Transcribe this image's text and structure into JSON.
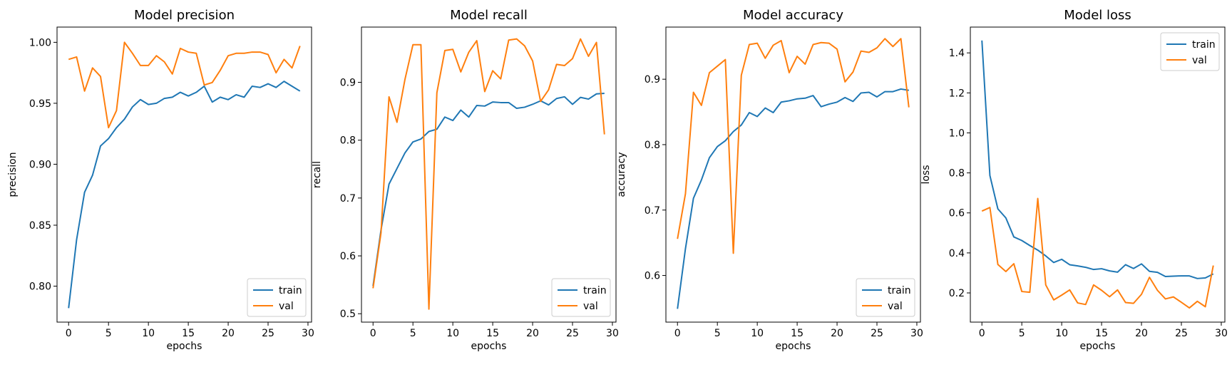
{
  "colors": {
    "train": "#1f77b4",
    "val": "#ff7f0e"
  },
  "chart_data": [
    {
      "type": "line",
      "title": "Model precision",
      "xlabel": "epochs",
      "ylabel": "precision",
      "xlim": [
        -1.45,
        30.45
      ],
      "ylim": [
        0.7705,
        1.0125
      ],
      "xticks": [
        0,
        5,
        10,
        15,
        20,
        25,
        30
      ],
      "yticks": [
        0.8,
        0.85,
        0.9,
        0.95,
        1.0
      ],
      "ytick_labels": [
        "0.80",
        "0.85",
        "0.90",
        "0.95",
        "1.00"
      ],
      "legend": "lower right",
      "x": [
        0,
        1,
        2,
        3,
        4,
        5,
        6,
        7,
        8,
        9,
        10,
        11,
        12,
        13,
        14,
        15,
        16,
        17,
        18,
        19,
        20,
        21,
        22,
        23,
        24,
        25,
        26,
        27,
        28,
        29
      ],
      "series": [
        {
          "name": "train",
          "color": "#1f77b4",
          "values": [
            0.782,
            0.838,
            0.877,
            0.891,
            0.915,
            0.921,
            0.93,
            0.937,
            0.947,
            0.953,
            0.949,
            0.95,
            0.954,
            0.955,
            0.959,
            0.956,
            0.959,
            0.964,
            0.951,
            0.955,
            0.953,
            0.957,
            0.955,
            0.964,
            0.963,
            0.966,
            0.963,
            0.968,
            0.964,
            0.96
          ]
        },
        {
          "name": "val",
          "color": "#ff7f0e",
          "values": [
            0.986,
            0.988,
            0.96,
            0.979,
            0.972,
            0.93,
            0.944,
            1.0,
            0.991,
            0.981,
            0.981,
            0.989,
            0.984,
            0.974,
            0.995,
            0.992,
            0.991,
            0.965,
            0.967,
            0.977,
            0.989,
            0.991,
            0.991,
            0.992,
            0.992,
            0.99,
            0.975,
            0.986,
            0.979,
            0.997
          ]
        }
      ]
    },
    {
      "type": "line",
      "title": "Model recall",
      "xlabel": "epochs",
      "ylabel": "recall",
      "xlim": [
        -1.45,
        30.45
      ],
      "ylim": [
        0.4855,
        0.9955
      ],
      "xticks": [
        0,
        5,
        10,
        15,
        20,
        25,
        30
      ],
      "yticks": [
        0.5,
        0.6,
        0.7,
        0.8,
        0.9
      ],
      "ytick_labels": [
        "0.5",
        "0.6",
        "0.7",
        "0.8",
        "0.9"
      ],
      "legend": "lower right",
      "x": [
        0,
        1,
        2,
        3,
        4,
        5,
        6,
        7,
        8,
        9,
        10,
        11,
        12,
        13,
        14,
        15,
        16,
        17,
        18,
        19,
        20,
        21,
        22,
        23,
        24,
        25,
        26,
        27,
        28,
        29
      ],
      "series": [
        {
          "name": "train",
          "color": "#1f77b4",
          "values": [
            0.548,
            0.645,
            0.724,
            0.751,
            0.778,
            0.797,
            0.802,
            0.815,
            0.819,
            0.84,
            0.834,
            0.852,
            0.84,
            0.86,
            0.859,
            0.866,
            0.865,
            0.865,
            0.855,
            0.857,
            0.862,
            0.868,
            0.861,
            0.872,
            0.875,
            0.862,
            0.874,
            0.871,
            0.88,
            0.881
          ]
        },
        {
          "name": "val",
          "color": "#ff7f0e",
          "values": [
            0.544,
            0.64,
            0.875,
            0.831,
            0.905,
            0.965,
            0.965,
            0.508,
            0.882,
            0.955,
            0.957,
            0.918,
            0.952,
            0.972,
            0.884,
            0.92,
            0.906,
            0.973,
            0.975,
            0.963,
            0.937,
            0.867,
            0.887,
            0.931,
            0.929,
            0.941,
            0.975,
            0.945,
            0.969,
            0.81
          ]
        }
      ]
    },
    {
      "type": "line",
      "title": "Model accuracy",
      "xlabel": "epochs",
      "ylabel": "accuracy",
      "xlim": [
        -1.45,
        30.45
      ],
      "ylim": [
        0.5287,
        0.9797
      ],
      "xticks": [
        0,
        5,
        10,
        15,
        20,
        25,
        30
      ],
      "yticks": [
        0.6,
        0.7,
        0.8,
        0.9
      ],
      "ytick_labels": [
        "0.6",
        "0.7",
        "0.8",
        "0.9"
      ],
      "legend": "lower right",
      "x": [
        0,
        1,
        2,
        3,
        4,
        5,
        6,
        7,
        8,
        9,
        10,
        11,
        12,
        13,
        14,
        15,
        16,
        17,
        18,
        19,
        20,
        21,
        22,
        23,
        24,
        25,
        26,
        27,
        28,
        29
      ],
      "series": [
        {
          "name": "train",
          "color": "#1f77b4",
          "values": [
            0.549,
            0.641,
            0.718,
            0.746,
            0.78,
            0.797,
            0.806,
            0.82,
            0.83,
            0.849,
            0.843,
            0.856,
            0.849,
            0.865,
            0.867,
            0.87,
            0.871,
            0.875,
            0.858,
            0.862,
            0.865,
            0.872,
            0.866,
            0.879,
            0.88,
            0.873,
            0.881,
            0.881,
            0.885,
            0.883
          ]
        },
        {
          "name": "val",
          "color": "#ff7f0e",
          "values": [
            0.656,
            0.725,
            0.88,
            0.86,
            0.91,
            0.92,
            0.93,
            0.634,
            0.906,
            0.953,
            0.955,
            0.932,
            0.952,
            0.959,
            0.91,
            0.935,
            0.923,
            0.953,
            0.956,
            0.955,
            0.946,
            0.896,
            0.911,
            0.943,
            0.941,
            0.948,
            0.962,
            0.95,
            0.962,
            0.857
          ]
        }
      ]
    },
    {
      "type": "line",
      "title": "Model loss",
      "xlabel": "epochs",
      "ylabel": "loss",
      "xlim": [
        -1.45,
        30.45
      ],
      "ylim": [
        0.054,
        1.529
      ],
      "xticks": [
        0,
        5,
        10,
        15,
        20,
        25,
        30
      ],
      "yticks": [
        0.2,
        0.4,
        0.6,
        0.8,
        1.0,
        1.2,
        1.4
      ],
      "ytick_labels": [
        "0.2",
        "0.4",
        "0.6",
        "0.8",
        "1.0",
        "1.2",
        "1.4"
      ],
      "legend": "upper right",
      "x": [
        0,
        1,
        2,
        3,
        4,
        5,
        6,
        7,
        8,
        9,
        10,
        11,
        12,
        13,
        14,
        15,
        16,
        17,
        18,
        19,
        20,
        21,
        22,
        23,
        24,
        25,
        26,
        27,
        28,
        29
      ],
      "series": [
        {
          "name": "train",
          "color": "#1f77b4",
          "values": [
            1.462,
            0.787,
            0.62,
            0.575,
            0.48,
            0.462,
            0.437,
            0.414,
            0.385,
            0.352,
            0.368,
            0.341,
            0.335,
            0.328,
            0.317,
            0.321,
            0.31,
            0.304,
            0.341,
            0.322,
            0.345,
            0.308,
            0.303,
            0.282,
            0.284,
            0.285,
            0.285,
            0.272,
            0.275,
            0.295
          ]
        },
        {
          "name": "val",
          "color": "#ff7f0e",
          "values": [
            0.609,
            0.627,
            0.342,
            0.307,
            0.346,
            0.207,
            0.203,
            0.672,
            0.24,
            0.165,
            0.189,
            0.215,
            0.15,
            0.142,
            0.24,
            0.213,
            0.181,
            0.215,
            0.152,
            0.148,
            0.193,
            0.278,
            0.213,
            0.17,
            0.18,
            0.153,
            0.125,
            0.158,
            0.131,
            0.337
          ]
        }
      ]
    }
  ]
}
